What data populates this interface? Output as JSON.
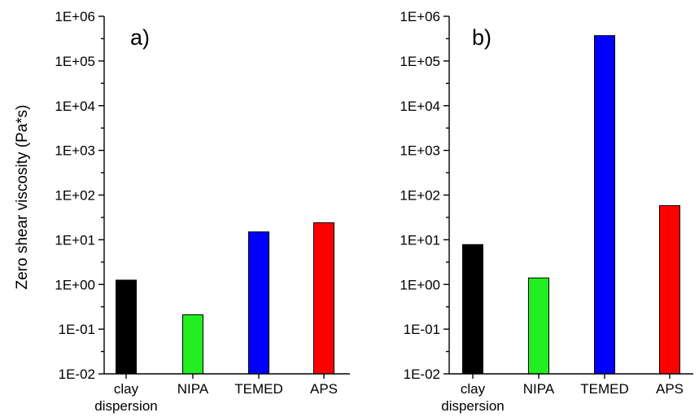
{
  "chart_data": [
    {
      "type": "bar",
      "panel_label": "a)",
      "ylabel": "Zero shear viscosity (Pa*s)",
      "yscale": "log",
      "ylim": [
        0.01,
        1000000
      ],
      "yticks": [
        "1E-02",
        "1E-01",
        "1E+00",
        "1E+01",
        "1E+02",
        "1E+03",
        "1E+04",
        "1E+05",
        "1E+06"
      ],
      "categories": [
        "clay dispersion",
        "NIPA",
        "TEMED",
        "APS"
      ],
      "category_lines": [
        [
          "clay",
          "dispersion"
        ],
        [
          "NIPA"
        ],
        [
          "TEMED"
        ],
        [
          "APS"
        ]
      ],
      "values": [
        1.25,
        0.21,
        15,
        24
      ],
      "colors": [
        "#000000",
        "#22ee22",
        "#0000ff",
        "#ff0000"
      ],
      "grid": false
    },
    {
      "type": "bar",
      "panel_label": "b)",
      "ylabel": "",
      "yscale": "log",
      "ylim": [
        0.01,
        1000000
      ],
      "yticks": [
        "1E-02",
        "1E-01",
        "1E+00",
        "1E+01",
        "1E+02",
        "1E+03",
        "1E+04",
        "1E+05",
        "1E+06"
      ],
      "categories": [
        "clay dispersion",
        "NIPA",
        "TEMED",
        "APS"
      ],
      "category_lines": [
        [
          "clay",
          "dispersion"
        ],
        [
          "NIPA"
        ],
        [
          "TEMED"
        ],
        [
          "APS"
        ]
      ],
      "values": [
        7.8,
        1.4,
        370000,
        58
      ],
      "colors": [
        "#000000",
        "#22ee22",
        "#0000ff",
        "#ff0000"
      ],
      "grid": false
    }
  ]
}
